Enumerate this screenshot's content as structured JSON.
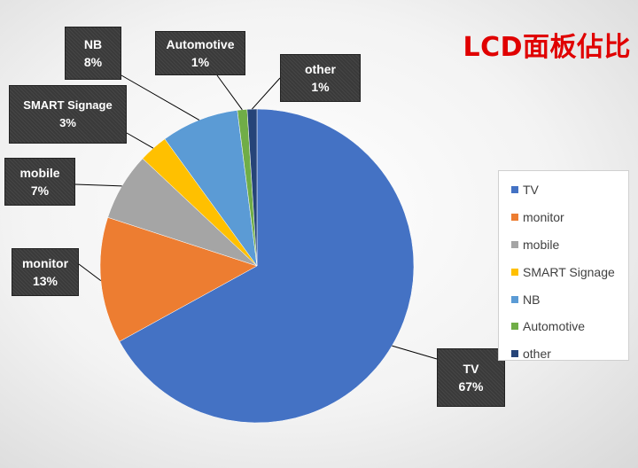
{
  "chart_data": {
    "type": "pie",
    "title": "LCD面板佔比",
    "categories": [
      "TV",
      "monitor",
      "mobile",
      "SMART Signage",
      "NB",
      "Automotive",
      "other"
    ],
    "values": [
      67,
      13,
      7,
      3,
      8,
      1,
      1
    ],
    "value_labels": [
      "67%",
      "13%",
      "7%",
      "3%",
      "8%",
      "1%",
      "1%"
    ],
    "colors": [
      "#4472C4",
      "#ED7D31",
      "#A5A5A5",
      "#FFC000",
      "#5B9BD5",
      "#70AD47",
      "#264478"
    ],
    "legend_position": "right",
    "start_angle_deg": 0,
    "direction": "clockwise"
  }
}
